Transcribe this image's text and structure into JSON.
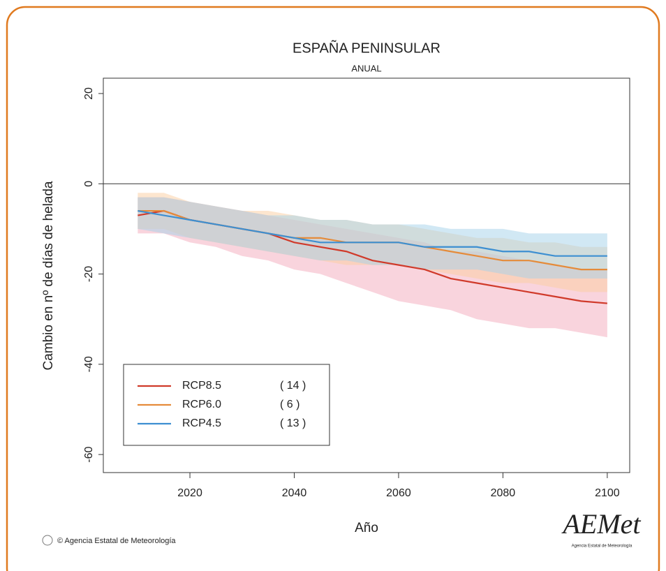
{
  "chart_data": {
    "type": "line_band",
    "title": "ESPAÑA PENINSULAR",
    "subtitle": "ANUAL",
    "ylabel": "Cambio en nº de días de helada",
    "xlabel": "Año",
    "x": [
      2010,
      2015,
      2020,
      2025,
      2030,
      2035,
      2040,
      2045,
      2050,
      2055,
      2060,
      2065,
      2070,
      2075,
      2080,
      2085,
      2090,
      2095,
      2100
    ],
    "xlim": [
      2003.4,
      2104.3
    ],
    "xticks": [
      2020,
      2040,
      2060,
      2080,
      2100
    ],
    "ylim": [
      -64,
      23.4
    ],
    "yticks": [
      -60,
      -40,
      -20,
      0,
      20
    ],
    "hline": 0,
    "legend": "lower left",
    "series": [
      {
        "name": "RCP8.5",
        "count": "( 14 )",
        "color": "#d03a2a",
        "band_color": "#f4a9bb",
        "values": [
          -7,
          -6,
          -8,
          -9,
          -10,
          -11,
          -13,
          -14,
          -15,
          -17,
          -18,
          -19,
          -21,
          -22,
          -23,
          -24,
          -25,
          -26,
          -26.5
        ],
        "lower": [
          -11,
          -11,
          -13,
          -14,
          -16,
          -17,
          -19,
          -20,
          -22,
          -24,
          -26,
          -27,
          -28,
          -30,
          -31,
          -32,
          -32,
          -33,
          -34
        ],
        "upper": [
          -3,
          -3,
          -4,
          -5,
          -6,
          -7,
          -8,
          -9,
          -10,
          -11,
          -12,
          -13,
          -15,
          -15,
          -16,
          -17,
          -18,
          -19,
          -19
        ]
      },
      {
        "name": "RCP6.0",
        "count": "(   6 )",
        "color": "#e58b3a",
        "band_color": "#fbcd9f",
        "values": [
          -6,
          -6,
          -8,
          -9,
          -10,
          -11,
          -12,
          -12,
          -13,
          -13,
          -13,
          -14,
          -15,
          -16,
          -17,
          -17,
          -18,
          -19,
          -19
        ],
        "lower": [
          -10,
          -10,
          -12,
          -13,
          -14,
          -15,
          -16,
          -17,
          -18,
          -18,
          -18,
          -19,
          -20,
          -21,
          -22,
          -22,
          -23,
          -24,
          -24
        ],
        "upper": [
          -2,
          -2,
          -4,
          -5,
          -6,
          -6,
          -7,
          -8,
          -8,
          -9,
          -9,
          -10,
          -11,
          -12,
          -12,
          -13,
          -13,
          -14,
          -14
        ]
      },
      {
        "name": "RCP4.5",
        "count": "( 13 )",
        "color": "#3d8fd1",
        "band_color": "#a3d2ea",
        "values": [
          -6,
          -7,
          -8,
          -9,
          -10,
          -11,
          -12,
          -13,
          -13,
          -13,
          -13,
          -14,
          -14,
          -14,
          -15,
          -15,
          -16,
          -16,
          -16
        ],
        "lower": [
          -10,
          -11,
          -12,
          -13,
          -14,
          -15,
          -16,
          -17,
          -17,
          -18,
          -18,
          -19,
          -19,
          -19,
          -20,
          -21,
          -21,
          -21,
          -21
        ],
        "upper": [
          -3,
          -3,
          -4,
          -5,
          -6,
          -7,
          -7,
          -8,
          -8,
          -9,
          -9,
          -9,
          -10,
          -10,
          -10,
          -11,
          -11,
          -11,
          -11
        ]
      }
    ],
    "footer": "© Agencia Estatal de Meteorología",
    "logo": "AEMet",
    "logo_caption": "Agencia Estatal de Meteorología"
  }
}
